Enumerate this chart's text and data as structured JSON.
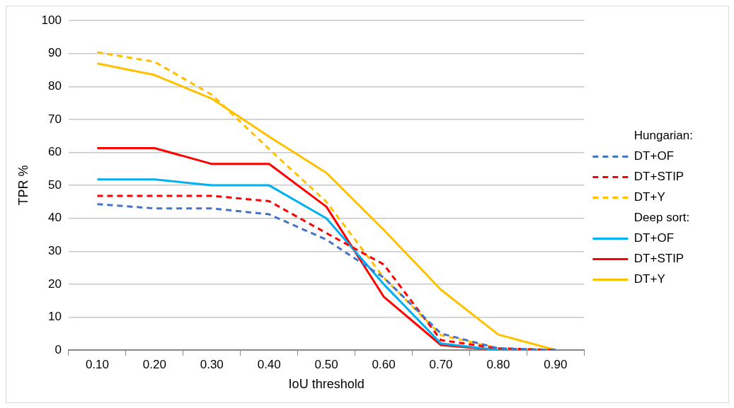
{
  "chart_data": {
    "type": "line",
    "xlabel": "IoU threshold",
    "ylabel": "TPR %",
    "categories": [
      "0.10",
      "0.20",
      "0.30",
      "0.40",
      "0.50",
      "0.60",
      "0.70",
      "0.80",
      "0.90"
    ],
    "ylim": [
      0,
      100
    ],
    "yticks": [
      0,
      10,
      20,
      30,
      40,
      50,
      60,
      70,
      80,
      90,
      100
    ],
    "grid": "y",
    "legend": "right",
    "marker": "none",
    "annotations": [
      "Hungarian:",
      "Deep sort:"
    ],
    "series": [
      {
        "name": "DT+OF",
        "color": "#4472c4",
        "line_style": "dashed",
        "values": [
          44.3,
          43,
          43,
          41.2,
          33.5,
          22,
          5,
          0.5,
          0
        ]
      },
      {
        "name": "DT+STIP",
        "color": "#ff0000",
        "line_style": "dashed",
        "values": [
          46.8,
          46.8,
          46.8,
          45.2,
          35.5,
          26,
          3,
          0.5,
          0
        ]
      },
      {
        "name": "DT+Y",
        "color": "#ffc000",
        "line_style": "dashed",
        "values": [
          90.4,
          87.5,
          77.5,
          61,
          45,
          22,
          4.5,
          0.5,
          0
        ]
      },
      {
        "name": "DT+OF",
        "color": "#00b0f0",
        "line_style": "solid",
        "values": [
          51.8,
          51.8,
          50,
          50,
          40,
          20,
          2,
          0,
          0
        ]
      },
      {
        "name": "DT+STIP",
        "color": "#ff0000",
        "line_style": "solid",
        "values": [
          61.3,
          61.3,
          56.5,
          56.5,
          43.5,
          16.2,
          1.5,
          0,
          0
        ]
      },
      {
        "name": "DT+Y",
        "color": "#ffc000",
        "line_style": "solid",
        "values": [
          87,
          83.5,
          76.3,
          64.8,
          53.8,
          36.5,
          18.3,
          4.7,
          0
        ]
      }
    ]
  }
}
